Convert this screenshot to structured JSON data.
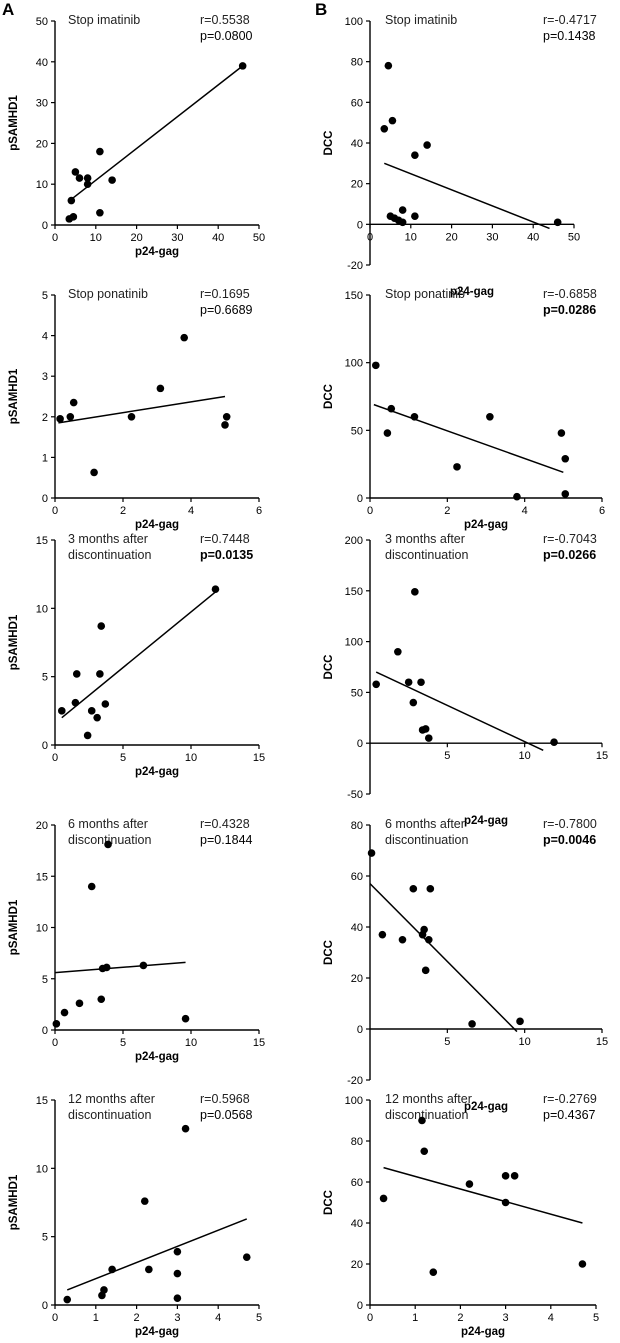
{
  "panel_labels": [
    "A",
    "B"
  ],
  "chart_data": [
    {
      "type": "scatter",
      "panel": "A",
      "title": "Stop imatinib",
      "xlabel": "p24-gag",
      "ylabel": "pSAMHD1",
      "xlim": [
        0,
        50
      ],
      "ylim": [
        0,
        50
      ],
      "xticks": [
        "0",
        "10",
        "20",
        "30",
        "40",
        "50"
      ],
      "yticks": [
        "0",
        "10",
        "20",
        "30",
        "40",
        "50"
      ],
      "stats": {
        "r": "r=0.5538",
        "p": "p=0.0800",
        "p_bold": false
      },
      "points": [
        [
          3.5,
          1.5
        ],
        [
          4.5,
          2
        ],
        [
          4,
          6
        ],
        [
          5,
          13
        ],
        [
          6,
          11.5
        ],
        [
          8,
          11.5
        ],
        [
          8,
          10
        ],
        [
          11,
          18
        ],
        [
          11,
          3
        ],
        [
          14,
          11
        ],
        [
          46,
          39
        ]
      ],
      "fit_line": [
        [
          4,
          6.3
        ],
        [
          46,
          39
        ]
      ]
    },
    {
      "type": "scatter",
      "panel": "B",
      "title": "Stop imatinib",
      "xlabel": "p24-gag",
      "ylabel": "DCC",
      "xlim": [
        0,
        50
      ],
      "ylim": [
        -20,
        100
      ],
      "xticks": [
        "0",
        "10",
        "20",
        "30",
        "40",
        "50"
      ],
      "yticks": [
        "-20",
        "0",
        "20",
        "40",
        "60",
        "80",
        "100"
      ],
      "stats": {
        "r": "r=-0.4717",
        "p": "p=0.1438",
        "p_bold": false
      },
      "points": [
        [
          3.5,
          47
        ],
        [
          4.5,
          78
        ],
        [
          5.5,
          51
        ],
        [
          5,
          4
        ],
        [
          6,
          3
        ],
        [
          7,
          2
        ],
        [
          8,
          7
        ],
        [
          8,
          1
        ],
        [
          11,
          34
        ],
        [
          11,
          4
        ],
        [
          14,
          39
        ],
        [
          46,
          1
        ]
      ],
      "fit_line": [
        [
          3.5,
          30
        ],
        [
          44,
          -2
        ]
      ]
    },
    {
      "type": "scatter",
      "panel": "A",
      "title": "Stop ponatinib",
      "xlabel": "p24-gag",
      "ylabel": "pSAMHD1",
      "xlim": [
        0,
        6
      ],
      "ylim": [
        0,
        5
      ],
      "xticks": [
        "0",
        "2",
        "4",
        "6"
      ],
      "yticks": [
        "0",
        "1",
        "2",
        "3",
        "4",
        "5"
      ],
      "stats": {
        "r": "r=0.1695",
        "p": "p=0.6689",
        "p_bold": false
      },
      "points": [
        [
          0.15,
          1.95
        ],
        [
          0.45,
          2
        ],
        [
          0.55,
          2.35
        ],
        [
          1.15,
          0.63
        ],
        [
          2.25,
          2
        ],
        [
          3.1,
          2.7
        ],
        [
          3.8,
          3.95
        ],
        [
          5.0,
          1.8
        ],
        [
          5.05,
          2
        ]
      ],
      "fit_line": [
        [
          0.1,
          1.85
        ],
        [
          5,
          2.5
        ]
      ]
    },
    {
      "type": "scatter",
      "panel": "B",
      "title": "Stop ponatinib",
      "xlabel": "p24-gag",
      "ylabel": "DCC",
      "xlim": [
        0,
        6
      ],
      "ylim": [
        0,
        150
      ],
      "xticks": [
        "0",
        "2",
        "4",
        "6"
      ],
      "yticks": [
        "0",
        "50",
        "100",
        "150"
      ],
      "stats": {
        "r": "r=-0.6858",
        "p": "p=0.0286",
        "p_bold": true
      },
      "points": [
        [
          0.15,
          98
        ],
        [
          0.45,
          48
        ],
        [
          0.55,
          66
        ],
        [
          1.15,
          60
        ],
        [
          2.25,
          23
        ],
        [
          3.1,
          60
        ],
        [
          3.8,
          1
        ],
        [
          4.95,
          48
        ],
        [
          5.05,
          29
        ],
        [
          5.05,
          3
        ]
      ],
      "fit_line": [
        [
          0.1,
          69
        ],
        [
          5,
          19
        ]
      ]
    },
    {
      "type": "scatter",
      "panel": "A",
      "title": "3 months after discontinuation",
      "xlabel": "p24-gag",
      "ylabel": "pSAMHD1",
      "xlim": [
        0,
        15
      ],
      "ylim": [
        0,
        15
      ],
      "xticks": [
        "0",
        "5",
        "10",
        "15"
      ],
      "yticks": [
        "0",
        "5",
        "10",
        "15"
      ],
      "stats": {
        "r": "r=0.7448",
        "p": "p=0.0135",
        "p_bold": true
      },
      "points": [
        [
          0.5,
          2.5
        ],
        [
          1.5,
          3.1
        ],
        [
          1.6,
          5.2
        ],
        [
          2.4,
          0.7
        ],
        [
          2.7,
          2.5
        ],
        [
          3.1,
          2
        ],
        [
          3.3,
          5.2
        ],
        [
          3.4,
          8.7
        ],
        [
          3.7,
          3
        ],
        [
          11.8,
          11.4
        ]
      ],
      "fit_line": [
        [
          0.5,
          2
        ],
        [
          11.8,
          11.2
        ]
      ]
    },
    {
      "type": "scatter",
      "panel": "B",
      "title": "3 months after discontinuation",
      "xlabel": "p24-gag",
      "ylabel": "DCC",
      "xlim": [
        0,
        15
      ],
      "ylim": [
        -50,
        200
      ],
      "xticks": [
        "5",
        "10",
        "15"
      ],
      "yticks": [
        "-50",
        "0",
        "50",
        "100",
        "150",
        "200"
      ],
      "stats": {
        "r": "r=-0.7043",
        "p": "p=0.0266",
        "p_bold": true
      },
      "points": [
        [
          0.4,
          58
        ],
        [
          1.8,
          90
        ],
        [
          2.5,
          60
        ],
        [
          2.8,
          40
        ],
        [
          2.9,
          149
        ],
        [
          3.3,
          60
        ],
        [
          3.4,
          13
        ],
        [
          3.6,
          14
        ],
        [
          3.8,
          5
        ],
        [
          11.9,
          1
        ]
      ],
      "fit_line": [
        [
          0.4,
          70
        ],
        [
          11.2,
          -7
        ]
      ]
    },
    {
      "type": "scatter",
      "panel": "A",
      "title": "6 months after discontinuation",
      "xlabel": "p24-gag",
      "ylabel": "pSAMHD1",
      "xlim": [
        0,
        15
      ],
      "ylim": [
        0,
        20
      ],
      "xticks": [
        "0",
        "5",
        "10",
        "15"
      ],
      "yticks": [
        "0",
        "5",
        "10",
        "15",
        "20"
      ],
      "stats": {
        "r": "r=0.4328",
        "p": "p=0.1844",
        "p_bold": false
      },
      "points": [
        [
          0.1,
          0.6
        ],
        [
          0.7,
          1.7
        ],
        [
          1.8,
          2.6
        ],
        [
          2.7,
          14
        ],
        [
          3.4,
          3
        ],
        [
          3.5,
          6
        ],
        [
          3.8,
          6.1
        ],
        [
          3.9,
          18.1
        ],
        [
          6.5,
          6.3
        ],
        [
          9.6,
          1.1
        ]
      ],
      "fit_line": [
        [
          0,
          5.6
        ],
        [
          9.6,
          6.6
        ]
      ]
    },
    {
      "type": "scatter",
      "panel": "B",
      "title": "6 months after discontinuation",
      "xlabel": "p24-gag",
      "ylabel": "DCC",
      "xlim": [
        0,
        15
      ],
      "ylim": [
        -20,
        80
      ],
      "xticks": [
        "5",
        "10",
        "15"
      ],
      "yticks": [
        "-20",
        "0",
        "20",
        "40",
        "60",
        "80"
      ],
      "stats": {
        "r": "r=-0.7800",
        "p": "p=0.0046",
        "p_bold": true
      },
      "points": [
        [
          0.1,
          69
        ],
        [
          0.8,
          37
        ],
        [
          2.1,
          35
        ],
        [
          2.8,
          55
        ],
        [
          3.4,
          37
        ],
        [
          3.5,
          39
        ],
        [
          3.6,
          23
        ],
        [
          3.8,
          35
        ],
        [
          3.9,
          55
        ],
        [
          6.6,
          2
        ],
        [
          9.7,
          3
        ]
      ],
      "fit_line": [
        [
          0,
          57
        ],
        [
          9.5,
          -1
        ]
      ]
    },
    {
      "type": "scatter",
      "panel": "A",
      "title": "12 months after discontinuation",
      "xlabel": "p24-gag",
      "ylabel": "pSAMHD1",
      "xlim": [
        0,
        5
      ],
      "ylim": [
        0,
        15
      ],
      "xticks": [
        "0",
        "1",
        "2",
        "3",
        "4",
        "5"
      ],
      "yticks": [
        "0",
        "5",
        "10",
        "15"
      ],
      "stats": {
        "r": "r=0.5968",
        "p": "p=0.0568",
        "p_bold": false
      },
      "points": [
        [
          0.3,
          0.4
        ],
        [
          1.15,
          0.7
        ],
        [
          1.2,
          1.1
        ],
        [
          1.4,
          2.6
        ],
        [
          2.2,
          7.6
        ],
        [
          2.3,
          2.6
        ],
        [
          3.0,
          0.5
        ],
        [
          3.0,
          2.3
        ],
        [
          3.0,
          3.9
        ],
        [
          3.2,
          12.9
        ],
        [
          4.7,
          3.5
        ]
      ],
      "fit_line": [
        [
          0.3,
          1.1
        ],
        [
          4.7,
          6.3
        ]
      ]
    },
    {
      "type": "scatter",
      "panel": "B",
      "title": "12 months after discontinuation",
      "xlabel": "p24-gag",
      "ylabel": "DCC",
      "xlim": [
        0,
        5
      ],
      "ylim": [
        0,
        100
      ],
      "xticks": [
        "0",
        "1",
        "2",
        "3",
        "4",
        "5"
      ],
      "yticks": [
        "0",
        "20",
        "40",
        "60",
        "80",
        "100"
      ],
      "stats": {
        "r": "r=-0.2769",
        "p": "p=0.4367",
        "p_bold": false
      },
      "points": [
        [
          0.3,
          52
        ],
        [
          1.15,
          90
        ],
        [
          1.2,
          75
        ],
        [
          1.4,
          16
        ],
        [
          2.2,
          59
        ],
        [
          3.0,
          50
        ],
        [
          3.0,
          63
        ],
        [
          3.2,
          63
        ],
        [
          4.7,
          20
        ]
      ],
      "fit_line": [
        [
          0.3,
          67
        ],
        [
          4.7,
          40
        ]
      ]
    }
  ]
}
